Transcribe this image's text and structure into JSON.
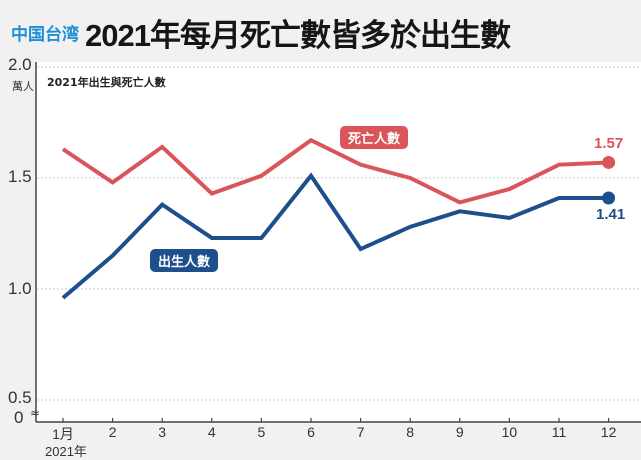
{
  "header": {
    "region_label": "中国台湾",
    "title": "2021年每月死亡數皆多於出生數"
  },
  "chart_data": {
    "type": "line",
    "title": "2021年每月死亡數皆多於出生數",
    "subtitle": "2021年出生與死亡人數",
    "xlabel": "2021年",
    "ylabel": "萬人",
    "categories": [
      "1月",
      "2",
      "3",
      "4",
      "5",
      "6",
      "7",
      "8",
      "9",
      "10",
      "11",
      "12"
    ],
    "y_ticks": [
      "2.0",
      "1.5",
      "1.0",
      "0.5",
      "0"
    ],
    "ylim": [
      0,
      2.0
    ],
    "axis_break": true,
    "grid": true,
    "series": [
      {
        "name": "死亡人數",
        "color": "#d9555a",
        "values": [
          1.63,
          1.48,
          1.64,
          1.43,
          1.51,
          1.67,
          1.56,
          1.5,
          1.39,
          1.45,
          1.56,
          1.57
        ],
        "end_label": "1.57"
      },
      {
        "name": "出生人數",
        "color": "#1c4f8c",
        "values": [
          0.96,
          1.15,
          1.38,
          1.23,
          1.23,
          1.51,
          1.18,
          1.28,
          1.35,
          1.32,
          1.41,
          1.41
        ],
        "end_label": "1.41"
      }
    ]
  }
}
